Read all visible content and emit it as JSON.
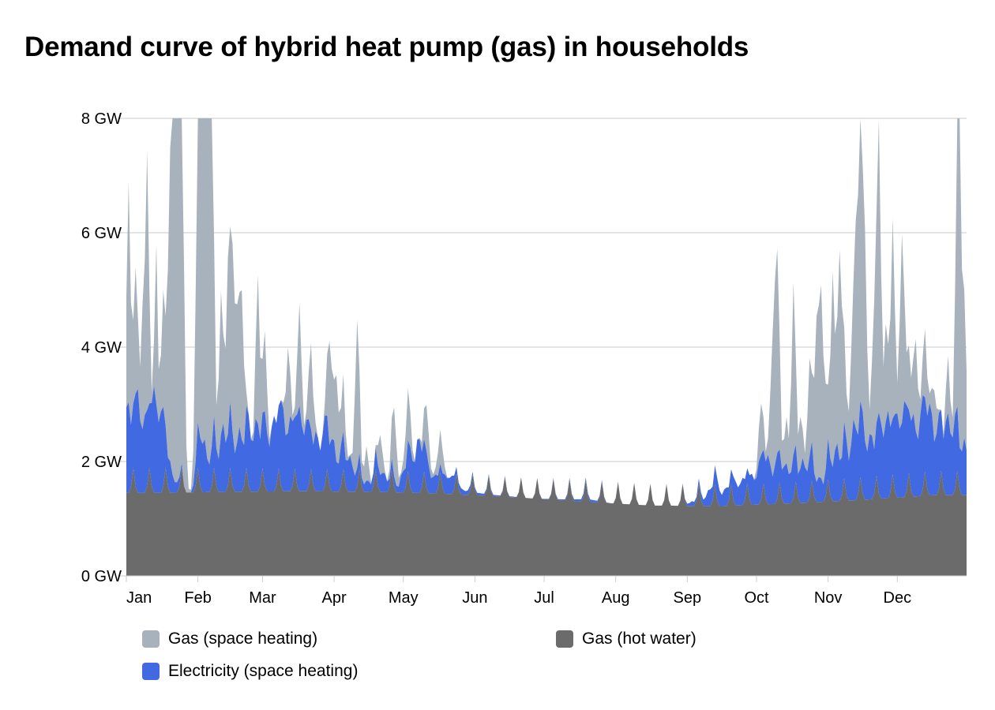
{
  "title": "Demand curve of hybrid heat pump (gas) in households",
  "chart_data": {
    "type": "area",
    "stacked": true,
    "title": "Demand curve of hybrid heat pump (gas) in households",
    "xlabel": "",
    "ylabel": "",
    "x_ticks": [
      "Jan",
      "Feb",
      "Mar",
      "Apr",
      "May",
      "Jun",
      "Jul",
      "Aug",
      "Sep",
      "Oct",
      "Nov",
      "Dec"
    ],
    "y_ticks": [
      "0 GW",
      "2 GW",
      "4 GW",
      "6 GW",
      "8 GW"
    ],
    "ylim": [
      0,
      8
    ],
    "unit": "GW",
    "grid": true,
    "legend_position": "bottom",
    "days_per_month": [
      31,
      28,
      31,
      30,
      31,
      30,
      31,
      31,
      30,
      31,
      30,
      31
    ],
    "series": [
      {
        "name": "Gas (hot water)",
        "color": "#6b6b6b",
        "key": "hot_water",
        "base_monthly": [
          1.45,
          1.47,
          1.48,
          1.47,
          1.44,
          1.38,
          1.3,
          1.23,
          1.22,
          1.27,
          1.33,
          1.41
        ],
        "weekly_peak_monthly": [
          0.45,
          0.42,
          0.4,
          0.4,
          0.37,
          0.35,
          0.38,
          0.38,
          0.38,
          0.38,
          0.4,
          0.43
        ]
      },
      {
        "name": "Electricity (space heating)",
        "color": "#4169e1",
        "key": "electricity",
        "points": [
          [
            0,
            1.5
          ],
          [
            2,
            1.0
          ],
          [
            5,
            1.6
          ],
          [
            8,
            1.3
          ],
          [
            12,
            1.5
          ],
          [
            16,
            1.2
          ],
          [
            20,
            0.3
          ],
          [
            25,
            0.0
          ],
          [
            28,
            0.0
          ],
          [
            30,
            0.4
          ],
          [
            32,
            1.0
          ],
          [
            35,
            0.5
          ],
          [
            38,
            0.8
          ],
          [
            42,
            1.0
          ],
          [
            46,
            0.8
          ],
          [
            50,
            1.1
          ],
          [
            55,
            0.9
          ],
          [
            60,
            1.2
          ],
          [
            64,
            1.0
          ],
          [
            68,
            1.3
          ],
          [
            72,
            1.2
          ],
          [
            76,
            1.1
          ],
          [
            80,
            1.0
          ],
          [
            85,
            0.9
          ],
          [
            90,
            0.8
          ],
          [
            94,
            0.6
          ],
          [
            98,
            0.4
          ],
          [
            102,
            0.2
          ],
          [
            106,
            0.15
          ],
          [
            110,
            0.4
          ],
          [
            114,
            0.2
          ],
          [
            118,
            0.1
          ],
          [
            122,
            0.6
          ],
          [
            126,
            0.8
          ],
          [
            130,
            0.5
          ],
          [
            136,
            0.2
          ],
          [
            140,
            0.3
          ],
          [
            145,
            0.1
          ],
          [
            150,
            0.05
          ],
          [
            160,
            0.02
          ],
          [
            175,
            0.0
          ],
          [
            190,
            0.02
          ],
          [
            200,
            0.05
          ],
          [
            210,
            0.0
          ],
          [
            240,
            0.0
          ],
          [
            248,
            0.1
          ],
          [
            255,
            0.3
          ],
          [
            262,
            0.3
          ],
          [
            268,
            0.4
          ],
          [
            275,
            0.6
          ],
          [
            280,
            0.8
          ],
          [
            285,
            0.5
          ],
          [
            290,
            0.7
          ],
          [
            295,
            0.6
          ],
          [
            300,
            0.4
          ],
          [
            305,
            0.6
          ],
          [
            310,
            0.9
          ],
          [
            315,
            1.1
          ],
          [
            320,
            1.2
          ],
          [
            325,
            1.0
          ],
          [
            330,
            1.3
          ],
          [
            335,
            1.4
          ],
          [
            340,
            1.2
          ],
          [
            345,
            1.5
          ],
          [
            350,
            1.1
          ],
          [
            355,
            1.3
          ],
          [
            360,
            0.9
          ],
          [
            364,
            0.9
          ]
        ]
      },
      {
        "name": "Gas (space heating)",
        "color": "#a8b2bd",
        "key": "gas_space",
        "peaks": [
          [
            1,
            3.85,
            1.2
          ],
          [
            4,
            2.2,
            1.3
          ],
          [
            7,
            2.0,
            1.0
          ],
          [
            9,
            4.5,
            1.1
          ],
          [
            13,
            2.8,
            0.9
          ],
          [
            16,
            1.9,
            1.2
          ],
          [
            19,
            4.6,
            1.6
          ],
          [
            21,
            6.5,
            1.4
          ],
          [
            22,
            6.6,
            1.3
          ],
          [
            24,
            6.3,
            1.4
          ],
          [
            31,
            4.6,
            1.4
          ],
          [
            33,
            6.2,
            1.5
          ],
          [
            35,
            5.6,
            1.4
          ],
          [
            37,
            5.5,
            1.3
          ],
          [
            41,
            2.5,
            1.3
          ],
          [
            44,
            2.8,
            1.2
          ],
          [
            46,
            3.0,
            1.3
          ],
          [
            48,
            1.9,
            1.2
          ],
          [
            50,
            2.5,
            1.3
          ],
          [
            57,
            2.6,
            1.2
          ],
          [
            60,
            1.4,
            1.3
          ],
          [
            70,
            1.5,
            1.2
          ],
          [
            75,
            1.8,
            1.3
          ],
          [
            80,
            1.5,
            1.3
          ],
          [
            88,
            1.8,
            1.4
          ],
          [
            91,
            1.5,
            1.3
          ],
          [
            94,
            1.0,
            1.2
          ],
          [
            100,
            2.6,
            1.3
          ],
          [
            104,
            0.6,
            1.2
          ],
          [
            110,
            0.7,
            1.2
          ],
          [
            116,
            1.2,
            1.4
          ],
          [
            122,
            0.9,
            1.6
          ],
          [
            130,
            0.8,
            1.6
          ],
          [
            136,
            0.6,
            1.6
          ],
          [
            275,
            0.9,
            1.5
          ],
          [
            280,
            2.1,
            1.4
          ],
          [
            282,
            3.3,
            1.4
          ],
          [
            286,
            0.8,
            1.3
          ],
          [
            289,
            3.0,
            1.2
          ],
          [
            292,
            0.9,
            1.3
          ],
          [
            296,
            1.7,
            1.3
          ],
          [
            299,
            2.7,
            1.3
          ],
          [
            301,
            3.0,
            1.2
          ],
          [
            303,
            1.3,
            1.3
          ],
          [
            306,
            3.4,
            1.2
          ],
          [
            309,
            3.6,
            1.3
          ],
          [
            311,
            1.3,
            1.2
          ],
          [
            314,
            1.4,
            1.3
          ],
          [
            316,
            3.3,
            1.2
          ],
          [
            318,
            5.8,
            1.1
          ],
          [
            320,
            3.5,
            1.2
          ],
          [
            324,
            2.3,
            1.3
          ],
          [
            326,
            4.9,
            1.2
          ],
          [
            329,
            1.7,
            1.3
          ],
          [
            332,
            3.5,
            1.2
          ],
          [
            336,
            3.3,
            1.3
          ],
          [
            339,
            1.1,
            1.3
          ],
          [
            342,
            1.6,
            1.3
          ],
          [
            346,
            1.2,
            1.3
          ],
          [
            350,
            0.9,
            1.2
          ],
          [
            356,
            1.0,
            1.3
          ],
          [
            360,
            4.1,
            1.2
          ],
          [
            361,
            4.2,
            1.0
          ],
          [
            363,
            2.5,
            1.3
          ]
        ]
      }
    ]
  },
  "legend": [
    {
      "label": "Gas (space heating)",
      "color": "#a8b2bd"
    },
    {
      "label": "Gas (hot water)",
      "color": "#6b6b6b"
    },
    {
      "label": "Electricity (space heating)",
      "color": "#4169e1"
    }
  ]
}
